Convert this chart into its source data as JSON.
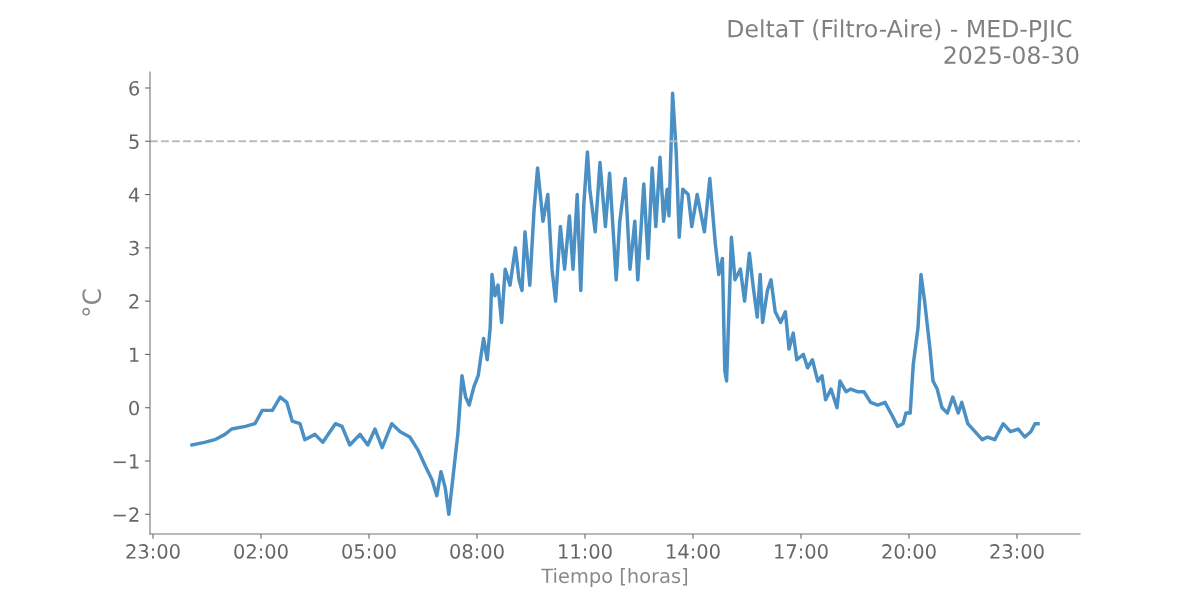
{
  "chart_data": {
    "type": "line",
    "title": "DeltaT (Filtro-Aire) - MED-PJIC \n2025-08-30",
    "xlabel": "Tiempo [horas]",
    "ylabel": "°C",
    "x": [
      "2025-08-30T00:05",
      "2025-08-30T00:26",
      "2025-08-30T00:43",
      "2025-08-30T01:00",
      "2025-08-30T01:11",
      "2025-08-30T01:34",
      "2025-08-30T01:50",
      "2025-08-30T02:02",
      "2025-08-30T02:19",
      "2025-08-30T02:32",
      "2025-08-30T02:43",
      "2025-08-30T02:52",
      "2025-08-30T03:05",
      "2025-08-30T03:13",
      "2025-08-30T03:30",
      "2025-08-30T03:43",
      "2025-08-30T04:04",
      "2025-08-30T04:15",
      "2025-08-30T04:28",
      "2025-08-30T04:45",
      "2025-08-30T04:58",
      "2025-08-30T05:10",
      "2025-08-30T05:22",
      "2025-08-30T05:38",
      "2025-08-30T05:52",
      "2025-08-30T06:08",
      "2025-08-30T06:22",
      "2025-08-30T06:34",
      "2025-08-30T06:45",
      "2025-08-30T06:53",
      "2025-08-30T07:00",
      "2025-08-30T07:07",
      "2025-08-30T07:13",
      "2025-08-30T07:20",
      "2025-08-30T07:28",
      "2025-08-30T07:35",
      "2025-08-30T07:41",
      "2025-08-30T07:47",
      "2025-08-30T07:55",
      "2025-08-30T08:02",
      "2025-08-30T08:07",
      "2025-08-30T08:11",
      "2025-08-30T08:17",
      "2025-08-30T08:22",
      "2025-08-30T08:25",
      "2025-08-30T08:30",
      "2025-08-30T08:35",
      "2025-08-30T08:41",
      "2025-08-30T08:47",
      "2025-08-30T08:55",
      "2025-08-30T09:04",
      "2025-08-30T09:10",
      "2025-08-30T09:15",
      "2025-08-30T09:20",
      "2025-08-30T09:28",
      "2025-08-30T09:35",
      "2025-08-30T09:41",
      "2025-08-30T09:50",
      "2025-08-30T09:58",
      "2025-08-30T10:05",
      "2025-08-30T10:11",
      "2025-08-30T10:19",
      "2025-08-30T10:26",
      "2025-08-30T10:34",
      "2025-08-30T10:40",
      "2025-08-30T10:47",
      "2025-08-30T10:53",
      "2025-08-30T10:58",
      "2025-08-30T11:04",
      "2025-08-30T11:08",
      "2025-08-30T11:17",
      "2025-08-30T11:25",
      "2025-08-30T11:34",
      "2025-08-30T11:41",
      "2025-08-30T11:52",
      "2025-08-30T11:58",
      "2025-08-30T12:07",
      "2025-08-30T12:15",
      "2025-08-30T12:23",
      "2025-08-30T12:28",
      "2025-08-30T12:38",
      "2025-08-30T12:45",
      "2025-08-30T12:52",
      "2025-08-30T12:58",
      "2025-08-30T13:05",
      "2025-08-30T13:11",
      "2025-08-30T13:17",
      "2025-08-30T13:20",
      "2025-08-30T13:26",
      "2025-08-30T13:32",
      "2025-08-30T13:37",
      "2025-08-30T13:43",
      "2025-08-30T13:52",
      "2025-08-30T13:58",
      "2025-08-30T14:07",
      "2025-08-30T14:19",
      "2025-08-30T14:28",
      "2025-08-30T14:37",
      "2025-08-30T14:43",
      "2025-08-30T14:49",
      "2025-08-30T14:53",
      "2025-08-30T14:56",
      "2025-08-30T15:04",
      "2025-08-30T15:10",
      "2025-08-30T15:19",
      "2025-08-30T15:26",
      "2025-08-30T15:34",
      "2025-08-30T15:40",
      "2025-08-30T15:47",
      "2025-08-30T15:52",
      "2025-08-30T15:56",
      "2025-08-30T16:04",
      "2025-08-30T16:10",
      "2025-08-30T16:17",
      "2025-08-30T16:26",
      "2025-08-30T16:34",
      "2025-08-30T16:40",
      "2025-08-30T16:47",
      "2025-08-30T16:53",
      "2025-08-30T17:04",
      "2025-08-30T17:11",
      "2025-08-30T17:19",
      "2025-08-30T17:28",
      "2025-08-30T17:35",
      "2025-08-30T17:41",
      "2025-08-30T17:50",
      "2025-08-30T18:00",
      "2025-08-30T18:05",
      "2025-08-30T18:15",
      "2025-08-30T18:23",
      "2025-08-30T18:34",
      "2025-08-30T18:45",
      "2025-08-30T18:56",
      "2025-08-30T19:08",
      "2025-08-30T19:20",
      "2025-08-30T19:32",
      "2025-08-30T19:41",
      "2025-08-30T19:50",
      "2025-08-30T19:55",
      "2025-08-30T20:02",
      "2025-08-30T20:07",
      "2025-08-30T20:15",
      "2025-08-30T20:20",
      "2025-08-30T20:26",
      "2025-08-30T20:35",
      "2025-08-30T20:40",
      "2025-08-30T20:47",
      "2025-08-30T20:55",
      "2025-08-30T21:04",
      "2025-08-30T21:13",
      "2025-08-30T21:22",
      "2025-08-30T21:28",
      "2025-08-30T21:38",
      "2025-08-30T21:50",
      "2025-08-30T22:02",
      "2025-08-30T22:11",
      "2025-08-30T22:23",
      "2025-08-30T22:37",
      "2025-08-30T22:49",
      "2025-08-30T23:02",
      "2025-08-30T23:13",
      "2025-08-30T23:23",
      "2025-08-30T23:30",
      "2025-08-30T23:35"
    ],
    "series": [
      {
        "color": "#4a90c4",
        "values": [
          -0.7,
          -0.65,
          -0.6,
          -0.5,
          -0.4,
          -0.35,
          -0.3,
          -0.05,
          -0.05,
          0.2,
          0.1,
          -0.25,
          -0.3,
          -0.6,
          -0.5,
          -0.65,
          -0.3,
          -0.35,
          -0.7,
          -0.5,
          -0.7,
          -0.4,
          -0.75,
          -0.3,
          -0.45,
          -0.55,
          -0.8,
          -1.1,
          -1.35,
          -1.65,
          -1.2,
          -1.5,
          -2.0,
          -1.3,
          -0.5,
          0.6,
          0.2,
          0.05,
          0.4,
          0.6,
          1.0,
          1.3,
          0.9,
          1.5,
          2.5,
          2.1,
          2.3,
          1.6,
          2.6,
          2.3,
          3.0,
          2.4,
          2.2,
          3.3,
          2.3,
          3.7,
          4.5,
          3.5,
          4.0,
          2.6,
          2.0,
          3.4,
          2.6,
          3.6,
          2.6,
          4.0,
          2.2,
          3.8,
          4.8,
          4.1,
          3.3,
          4.6,
          3.4,
          4.4,
          2.4,
          3.5,
          4.3,
          2.6,
          3.5,
          2.4,
          4.2,
          2.8,
          4.5,
          3.4,
          4.7,
          3.5,
          4.1,
          3.6,
          5.9,
          4.8,
          3.2,
          4.1,
          4.0,
          3.4,
          4.0,
          3.3,
          4.3,
          3.1,
          2.5,
          2.8,
          0.7,
          0.5,
          3.2,
          2.4,
          2.6,
          2.0,
          2.9,
          2.3,
          1.7,
          2.5,
          1.6,
          2.2,
          2.4,
          1.8,
          1.6,
          1.8,
          1.1,
          1.4,
          0.9,
          1.0,
          0.75,
          0.9,
          0.5,
          0.6,
          0.15,
          0.35,
          0.0,
          0.5,
          0.3,
          0.35,
          0.3,
          0.3,
          0.1,
          0.05,
          0.1,
          -0.15,
          -0.35,
          -0.3,
          -0.1,
          -0.1,
          0.8,
          1.5,
          2.5,
          2.0,
          1.1,
          0.5,
          0.35,
          0.0,
          -0.1,
          0.2,
          -0.1,
          0.1,
          -0.3,
          -0.45,
          -0.6,
          -0.55,
          -0.6,
          -0.3,
          -0.45,
          -0.4,
          -0.55,
          -0.45,
          -0.3,
          -0.3
        ]
      }
    ],
    "xlim": [
      "2025-08-29T22:55",
      "2025-08-31T00:45"
    ],
    "xticks": [
      {
        "value": "2025-08-29T23:00",
        "label": "23:00"
      },
      {
        "value": "2025-08-30T02:00",
        "label": "02:00"
      },
      {
        "value": "2025-08-30T05:00",
        "label": "05:00"
      },
      {
        "value": "2025-08-30T08:00",
        "label": "08:00"
      },
      {
        "value": "2025-08-30T11:00",
        "label": "11:00"
      },
      {
        "value": "2025-08-30T14:00",
        "label": "14:00"
      },
      {
        "value": "2025-08-30T17:00",
        "label": "17:00"
      },
      {
        "value": "2025-08-30T20:00",
        "label": "20:00"
      },
      {
        "value": "2025-08-30T23:00",
        "label": "23:00"
      }
    ],
    "ylim": [
      -2.37,
      6.3
    ],
    "yticks": [
      {
        "value": -2,
        "label": "−2"
      },
      {
        "value": -1,
        "label": "−1"
      },
      0,
      1,
      2,
      3,
      4,
      5,
      6
    ],
    "ref_lines": [
      {
        "axis": "y",
        "value": 5,
        "color": "#bbbbbb",
        "line_style": "dashed"
      }
    ],
    "grid": false,
    "marker": "none",
    "line_style": "solid"
  }
}
